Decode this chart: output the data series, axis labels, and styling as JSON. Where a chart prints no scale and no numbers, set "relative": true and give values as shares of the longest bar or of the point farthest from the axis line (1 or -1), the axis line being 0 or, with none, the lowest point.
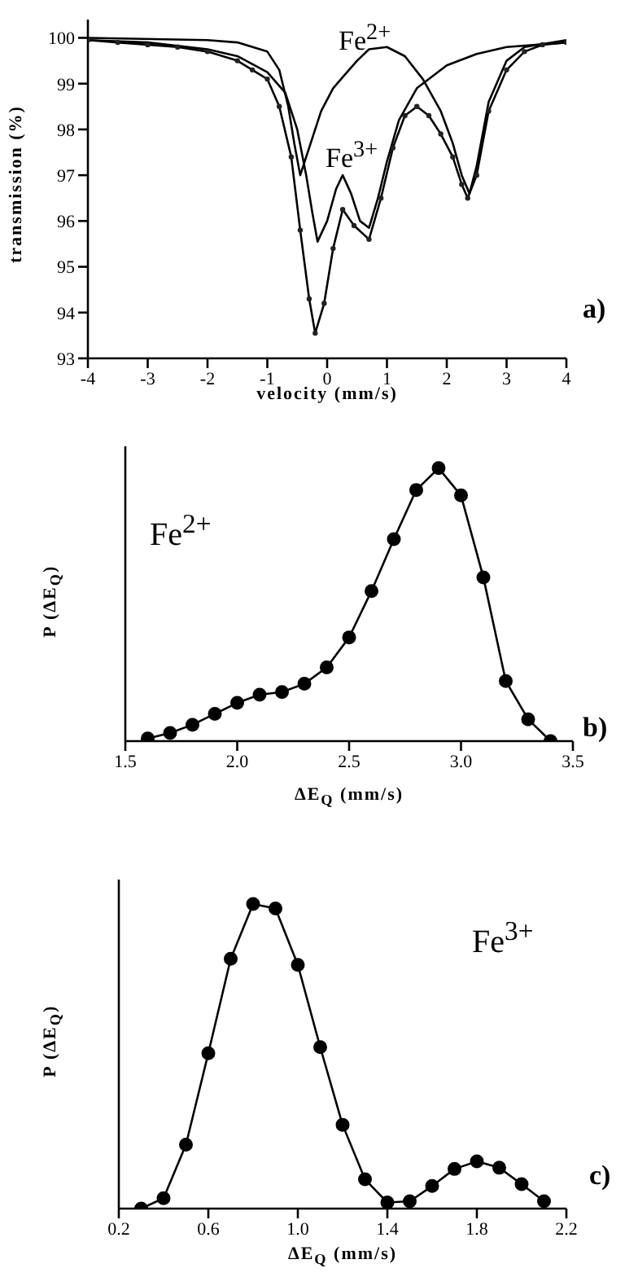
{
  "chart_data": [
    {
      "type": "line",
      "xlabel": "velocity (mm/s)",
      "ylabel": "transmission (%)",
      "xlim": [
        -4,
        4
      ],
      "xticks": [
        -4,
        -3,
        -2,
        -1,
        0,
        1,
        2,
        3,
        4
      ],
      "ylim": [
        93,
        100.4
      ],
      "yticks": [
        93,
        94,
        95,
        96,
        97,
        98,
        99,
        100
      ],
      "annotations": [
        "a)"
      ],
      "series": [
        {
          "type": "scatter",
          "color": "#222222",
          "x": [
            -4,
            -3.5,
            -3,
            -2.5,
            -2,
            -1.5,
            -1.25,
            -1,
            -0.8,
            -0.6,
            -0.45,
            -0.3,
            -0.2,
            -0.05,
            0.1,
            0.26,
            0.45,
            0.7,
            0.9,
            1.1,
            1.3,
            1.5,
            1.7,
            1.9,
            2.1,
            2.25,
            2.35,
            2.5,
            2.7,
            3,
            3.3,
            3.6,
            4
          ],
          "values": [
            99.95,
            99.9,
            99.85,
            99.8,
            99.7,
            99.5,
            99.3,
            99.1,
            98.5,
            97.4,
            95.8,
            94.3,
            93.55,
            94.2,
            95.4,
            96.25,
            95.9,
            95.6,
            96.5,
            97.6,
            98.3,
            98.5,
            98.3,
            97.9,
            97.4,
            96.8,
            96.5,
            97,
            98.4,
            99.3,
            99.7,
            99.85,
            99.9
          ]
        },
        {
          "color": "#000000",
          "x": [
            -4,
            -3.5,
            -3,
            -2.5,
            -2,
            -1.5,
            -1.25,
            -1,
            -0.8,
            -0.6,
            -0.45,
            -0.3,
            -0.2,
            -0.05,
            0.1,
            0.26,
            0.45,
            0.7,
            0.9,
            1.1,
            1.3,
            1.5,
            1.7,
            1.9,
            2.1,
            2.25,
            2.35,
            2.5,
            2.7,
            3,
            3.3,
            3.6,
            4
          ],
          "values": [
            99.95,
            99.9,
            99.85,
            99.8,
            99.7,
            99.5,
            99.3,
            99.1,
            98.5,
            97.4,
            95.8,
            94.3,
            93.55,
            94.2,
            95.4,
            96.25,
            95.9,
            95.6,
            96.5,
            97.6,
            98.3,
            98.5,
            98.3,
            97.9,
            97.4,
            96.8,
            96.5,
            97,
            98.4,
            99.3,
            99.7,
            99.85,
            99.9
          ]
        },
        {
          "name": "Fe$^{2+}$",
          "color": "#000000",
          "x": [
            -4,
            -2,
            -1.5,
            -1,
            -0.8,
            -0.65,
            -0.55,
            -0.45,
            -0.3,
            -0.1,
            0.1,
            0.3,
            0.5,
            0.7,
            1,
            1.3,
            1.6,
            1.9,
            2.1,
            2.25,
            2.38,
            2.5,
            2.7,
            3,
            3.3,
            4
          ],
          "values": [
            100,
            99.95,
            99.9,
            99.7,
            99.3,
            98.5,
            97.7,
            97,
            97.6,
            98.4,
            98.9,
            99.2,
            99.5,
            99.75,
            99.8,
            99.6,
            99.1,
            98.4,
            97.7,
            97,
            96.6,
            97.2,
            98.6,
            99.5,
            99.8,
            99.95
          ]
        },
        {
          "name": "Fe$^{3+}$",
          "color": "#000000",
          "x": [
            -4,
            -3,
            -2,
            -1.5,
            -1,
            -0.7,
            -0.5,
            -0.35,
            -0.25,
            -0.16,
            0,
            0.15,
            0.26,
            0.4,
            0.55,
            0.7,
            0.85,
            1,
            1.2,
            1.5,
            2,
            2.5,
            3,
            4
          ],
          "values": [
            99.95,
            99.9,
            99.75,
            99.6,
            99.25,
            98.8,
            98,
            97,
            96.2,
            95.55,
            96,
            96.7,
            97,
            96.6,
            96,
            95.85,
            96.5,
            97.3,
            98.2,
            98.9,
            99.4,
            99.65,
            99.8,
            99.9
          ]
        }
      ]
    },
    {
      "type": "line",
      "relative": true,
      "marker": "circle",
      "xlabel": "ΔE$_{Q}$ (mm/s)",
      "ylabel": "P (ΔE$_{Q}$)",
      "xlim": [
        1.5,
        3.5
      ],
      "xticks": [
        1.5,
        {
          "value": 2,
          "label": "2.0"
        },
        2.5,
        {
          "value": 3,
          "label": "3.0"
        },
        3.5
      ],
      "annotations": [
        "Fe$^{2+}$",
        "b)"
      ],
      "series": [
        {
          "color": "#000000",
          "x": [
            1.6,
            1.7,
            1.8,
            1.9,
            2,
            2.1,
            2.2,
            2.3,
            2.4,
            2.5,
            2.6,
            2.7,
            2.8,
            2.9,
            3,
            3.1,
            3.2,
            3.3,
            3.4
          ],
          "values": [
            0.01,
            0.03,
            0.06,
            0.1,
            0.14,
            0.17,
            0.18,
            0.21,
            0.27,
            0.38,
            0.55,
            0.74,
            0.92,
            1,
            0.9,
            0.6,
            0.22,
            0.08,
            0
          ]
        }
      ]
    },
    {
      "type": "line",
      "relative": true,
      "marker": "circle",
      "xlabel": "ΔE$_{Q}$ (mm/s)",
      "ylabel": "P (ΔE$_{Q}$)",
      "xlim": [
        0.2,
        2.2
      ],
      "xticks": [
        0.2,
        0.6,
        {
          "value": 1,
          "label": "1.0"
        },
        1.4,
        1.8,
        2.2
      ],
      "annotations": [
        "Fe$^{3+}$",
        "c)"
      ],
      "series": [
        {
          "color": "#000000",
          "x": [
            0.3,
            0.4,
            0.5,
            0.6,
            0.7,
            0.8,
            0.9,
            1,
            1.1,
            1.2,
            1.3,
            1.4,
            1.5,
            1.6,
            1.7,
            1.8,
            1.9,
            2,
            2.1
          ],
          "values": [
            0,
            0.034,
            0.21,
            0.51,
            0.82,
            1,
            0.985,
            0.8,
            0.53,
            0.275,
            0.096,
            0.02,
            0.024,
            0.074,
            0.13,
            0.155,
            0.134,
            0.08,
            0.024
          ]
        }
      ]
    }
  ]
}
